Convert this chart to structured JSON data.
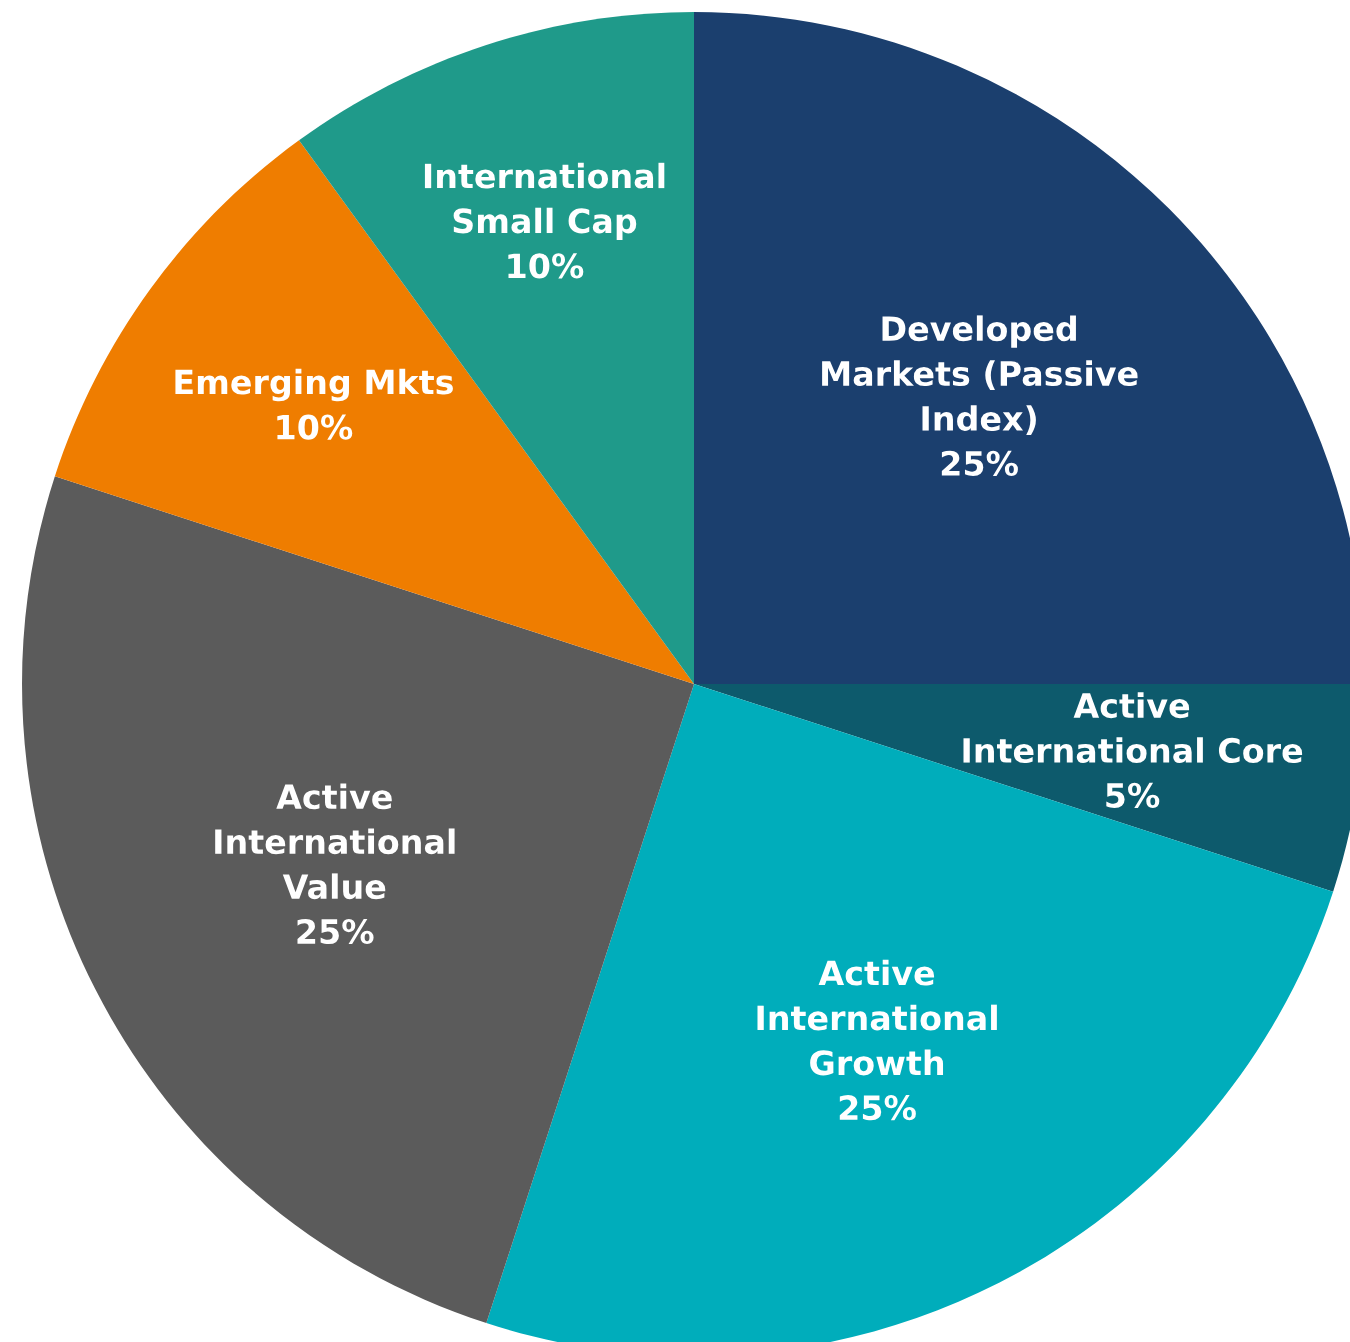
{
  "chart_data": {
    "type": "pie",
    "categories": [
      "Developed\nMarkets (Passive\nIndex)",
      "Active\nInternational Core",
      "Active\nInternational\nGrowth",
      "Active\nInternational\nValue",
      "Emerging Mkts",
      "International\nSmall Cap"
    ],
    "values": [
      25,
      5,
      25,
      25,
      10,
      10
    ],
    "value_labels": [
      "25%",
      "5%",
      "25%",
      "25%",
      "10%",
      "10%"
    ],
    "colors": [
      "#1b3f6e",
      "#0d5a6c",
      "#00adbb",
      "#5b5b5b",
      "#ef7d00",
      "#1f9a8a"
    ],
    "legend": false
  }
}
